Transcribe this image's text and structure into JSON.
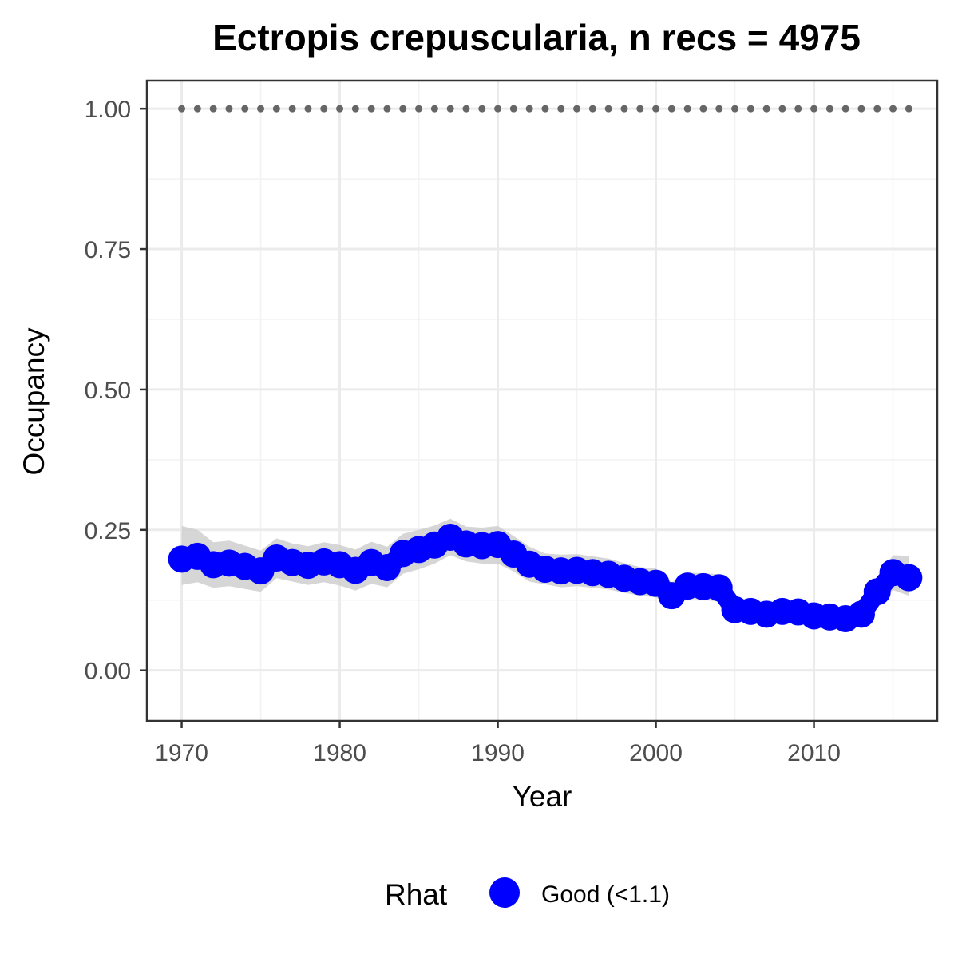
{
  "chart_data": {
    "type": "line",
    "title": "Ectropis crepuscularia, n recs = 4975",
    "xlabel": "Year",
    "ylabel": "Occupancy",
    "xlim": [
      1967.8,
      2017.8
    ],
    "ylim": [
      -0.09,
      1.05
    ],
    "x_ticks": [
      1970,
      1980,
      1990,
      2000,
      2010
    ],
    "x_tick_labels": [
      "1970",
      "1980",
      "1990",
      "2000",
      "2010"
    ],
    "y_ticks": [
      0,
      0.25,
      0.5,
      0.75,
      1.0
    ],
    "y_tick_labels": [
      "0.00",
      "0.25",
      "0.50",
      "0.75",
      "1.00"
    ],
    "grid": true,
    "legend_position": "bottom",
    "legend_title": "Rhat",
    "series": [
      {
        "name": "Good (<1.1)",
        "color": "#0000ff",
        "x": [
          1970,
          1971,
          1972,
          1973,
          1974,
          1975,
          1976,
          1977,
          1978,
          1979,
          1980,
          1981,
          1982,
          1983,
          1984,
          1985,
          1986,
          1987,
          1988,
          1989,
          1990,
          1991,
          1992,
          1993,
          1994,
          1995,
          1996,
          1997,
          1998,
          1999,
          2000,
          2001,
          2002,
          2003,
          2004,
          2005,
          2006,
          2007,
          2008,
          2009,
          2010,
          2011,
          2012,
          2013,
          2014,
          2015,
          2016
        ],
        "values": [
          0.198,
          0.203,
          0.188,
          0.191,
          0.185,
          0.177,
          0.2,
          0.192,
          0.187,
          0.193,
          0.188,
          0.178,
          0.192,
          0.183,
          0.208,
          0.215,
          0.223,
          0.237,
          0.225,
          0.222,
          0.224,
          0.207,
          0.189,
          0.18,
          0.177,
          0.178,
          0.174,
          0.171,
          0.164,
          0.158,
          0.155,
          0.133,
          0.15,
          0.149,
          0.147,
          0.108,
          0.105,
          0.1,
          0.105,
          0.104,
          0.097,
          0.095,
          0.092,
          0.1,
          0.14,
          0.174,
          0.165
        ],
        "lower": [
          0.152,
          0.157,
          0.147,
          0.15,
          0.145,
          0.14,
          0.164,
          0.158,
          0.152,
          0.157,
          0.151,
          0.142,
          0.154,
          0.148,
          0.172,
          0.18,
          0.19,
          0.205,
          0.194,
          0.19,
          0.19,
          0.176,
          0.158,
          0.153,
          0.148,
          0.15,
          0.147,
          0.144,
          0.138,
          0.133,
          0.13,
          0.112,
          0.127,
          0.126,
          0.122,
          0.089,
          0.086,
          0.083,
          0.087,
          0.086,
          0.08,
          0.078,
          0.076,
          0.083,
          0.118,
          0.143,
          0.133
        ],
        "upper": [
          0.257,
          0.25,
          0.228,
          0.231,
          0.222,
          0.213,
          0.235,
          0.226,
          0.221,
          0.228,
          0.223,
          0.215,
          0.229,
          0.22,
          0.243,
          0.25,
          0.258,
          0.27,
          0.256,
          0.254,
          0.257,
          0.239,
          0.22,
          0.208,
          0.206,
          0.207,
          0.203,
          0.199,
          0.191,
          0.184,
          0.181,
          0.157,
          0.174,
          0.173,
          0.171,
          0.129,
          0.125,
          0.118,
          0.123,
          0.123,
          0.114,
          0.113,
          0.109,
          0.119,
          0.163,
          0.205,
          0.204
        ]
      },
      {
        "name": "reference",
        "color": "#666666",
        "x": [
          1970,
          1971,
          1972,
          1973,
          1974,
          1975,
          1976,
          1977,
          1978,
          1979,
          1980,
          1981,
          1982,
          1983,
          1984,
          1985,
          1986,
          1987,
          1988,
          1989,
          1990,
          1991,
          1992,
          1993,
          1994,
          1995,
          1996,
          1997,
          1998,
          1999,
          2000,
          2001,
          2002,
          2003,
          2004,
          2005,
          2006,
          2007,
          2008,
          2009,
          2010,
          2011,
          2012,
          2013,
          2014,
          2015,
          2016
        ],
        "values": [
          1,
          1,
          1,
          1,
          1,
          1,
          1,
          1,
          1,
          1,
          1,
          1,
          1,
          1,
          1,
          1,
          1,
          1,
          1,
          1,
          1,
          1,
          1,
          1,
          1,
          1,
          1,
          1,
          1,
          1,
          1,
          1,
          1,
          1,
          1,
          1,
          1,
          1,
          1,
          1,
          1,
          1,
          1,
          1,
          1,
          1,
          1
        ]
      }
    ]
  }
}
